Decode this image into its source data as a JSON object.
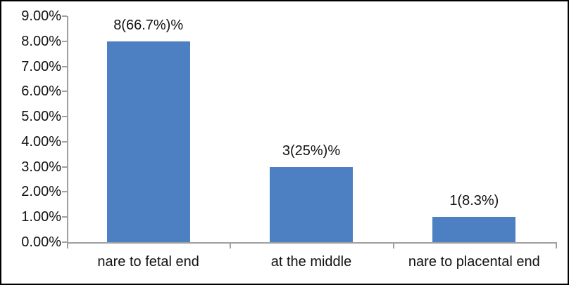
{
  "chart_data": {
    "type": "bar",
    "title": "",
    "xlabel": "",
    "ylabel": "",
    "categories": [
      "nare to fetal end",
      "at the middle",
      "nare to placental end"
    ],
    "values": [
      8,
      3,
      1
    ],
    "data_labels": [
      "8(66.7%)%",
      "3(25%)%",
      "1(8.3%)"
    ],
    "y_ticks": [
      "9.00%",
      "8.00%",
      "7.00%",
      "6.00%",
      "5.00%",
      "4.00%",
      "3.00%",
      "2.00%",
      "1.00%",
      "0.00%"
    ],
    "ylim": [
      0,
      9
    ],
    "grid": false,
    "legend": false,
    "bar_color": "#4D80C2",
    "axis_color": "#A0A0A0",
    "text_color": "#111111",
    "background_color": "#FFFFFF",
    "border_color": "#000000"
  }
}
